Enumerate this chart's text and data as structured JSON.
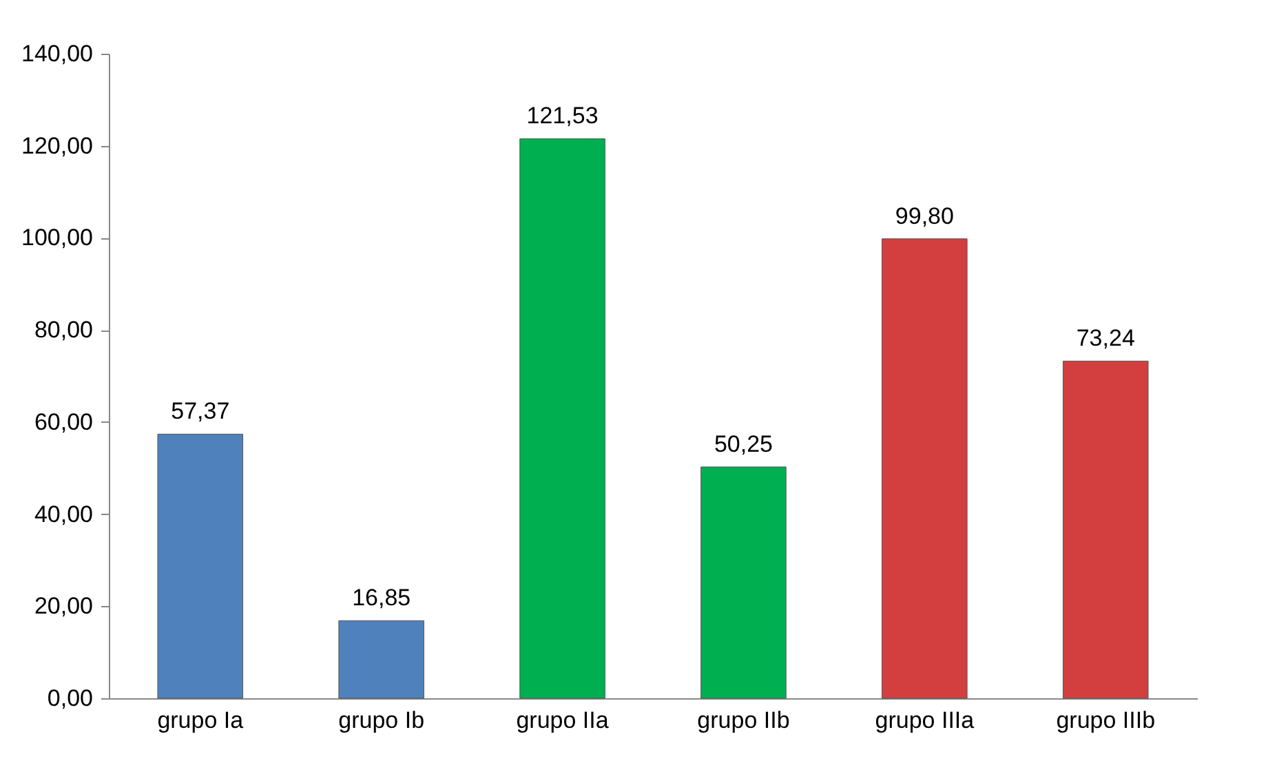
{
  "chart_data": {
    "type": "bar",
    "categories": [
      "grupo Ia",
      "grupo Ib",
      "grupo IIa",
      "grupo IIb",
      "grupo IIIa",
      "grupo IIIb"
    ],
    "values": [
      57.37,
      16.85,
      121.53,
      50.25,
      99.8,
      73.24
    ],
    "colors": [
      "#4f81bd",
      "#4f81bd",
      "#00b050",
      "#00b050",
      "#d33f3f",
      "#d33f3f"
    ],
    "value_labels": [
      "57,37",
      "16,85",
      "121,53",
      "50,25",
      "99,80",
      "73,24"
    ],
    "ylim": [
      0,
      140
    ],
    "yticks": [
      {
        "value": 0,
        "label": "0,00"
      },
      {
        "value": 20,
        "label": "20,00"
      },
      {
        "value": 40,
        "label": "40,00"
      },
      {
        "value": 60,
        "label": "60,00"
      },
      {
        "value": 80,
        "label": "80,00"
      },
      {
        "value": 100,
        "label": "100,00"
      },
      {
        "value": 120,
        "label": "120,00"
      },
      {
        "value": 140,
        "label": "140,00"
      }
    ],
    "grid": false
  }
}
